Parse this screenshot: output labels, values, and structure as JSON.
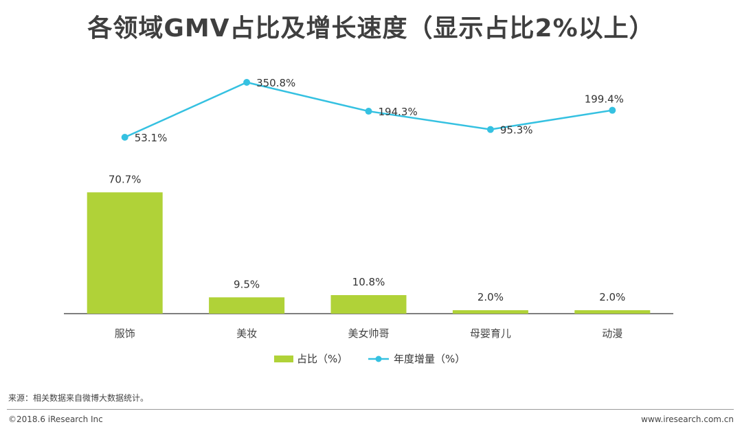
{
  "chart_data": {
    "type": "bar+line",
    "title": "各领域GMV占比及增长速度（显示占比2%以上）",
    "categories": [
      "服饰",
      "美妆",
      "美女帅哥",
      "母婴育儿",
      "动漫"
    ],
    "series": [
      {
        "name": "占比（%）",
        "type": "bar",
        "color": "#b0d238",
        "values": [
          70.7,
          9.5,
          10.8,
          2.0,
          2.0
        ],
        "labels": [
          "70.7%",
          "9.5%",
          "10.8%",
          "2.0%",
          "2.0%"
        ]
      },
      {
        "name": "年度增量（%）",
        "type": "line",
        "color": "#35c1e1",
        "values": [
          53.1,
          350.8,
          194.3,
          95.3,
          199.4
        ],
        "labels": [
          "53.1%",
          "350.8%",
          "194.3%",
          "95.3%",
          "199.4%"
        ]
      }
    ],
    "bar_ylim": [
      0,
      100
    ],
    "line_ylim": [
      0,
      400
    ],
    "legend_position": "bottom-center"
  },
  "footer": {
    "source": "来源：相关数据来自微博大数据统计。",
    "copyright": "©2018.6 iResearch Inc",
    "website": "www.iresearch.com.cn"
  }
}
